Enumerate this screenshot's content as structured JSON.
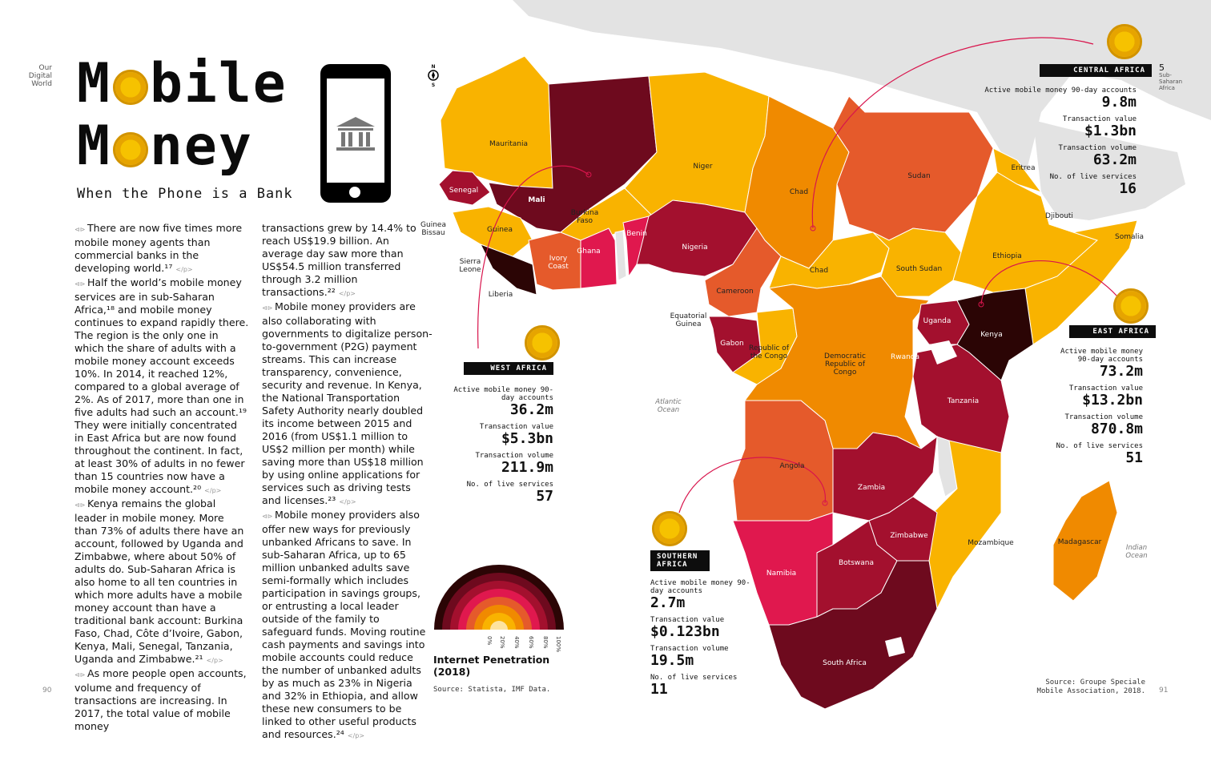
{
  "header": {
    "section": "Our Digital World",
    "page_section_no": "5",
    "page_section_name": "Sub-Saharan Africa"
  },
  "title": {
    "line1": "M bile",
    "line2": "M ney",
    "subtitle": "When the Phone is a Bank"
  },
  "compass": {
    "n": "N",
    "s": "S"
  },
  "body": {
    "col1": [
      "There are now five times more mobile money agents than commercial banks in the developing world.¹⁷",
      "Half the world’s mobile money services are in sub-Saharan Africa,¹⁸ and mobile money continues to expand rapidly there. The region is the only one in which the share of adults with a mobile money account exceeds 10%. In 2014, it reached 12%, compared to a global average of 2%. As of 2017, more than one in five adults had such an account.¹⁹ They were initially concentrated in East Africa but are now found throughout the continent. In fact, at least 30% of adults in no fewer than 15 countries now have a mobile money account.²⁰",
      "Kenya remains the global leader in mobile money. More than 73% of adults there have an account, followed by Uganda and Zimbabwe, where about 50% of adults do. Sub-Saharan Africa is also home to all ten countries in which more adults have a mobile money account than have a traditional bank account: Burkina Faso, Chad, Côte d’Ivoire, Gabon, Kenya, Mali, Senegal, Tanzania, Uganda and Zimbabwe.²¹",
      "As more people open accounts, volume and frequency of transactions are increasing. In 2017, the total value of mobile money"
    ],
    "col2": [
      "transactions grew by 14.4% to reach US$19.9 billion. An average day saw more than US$54.5 million transferred through 3.2 million transactions.²²",
      "Mobile money providers are also collaborating with governments to digitalize person-to-government (P2G) payment streams. This can increase transparency, convenience, security and revenue. In Kenya, the National Transportation Safety Authority nearly doubled its income between 2015 and 2016 (from US$1.1 million to US$2 million per month) while saving more than US$18 million by using online applications for services such as driving tests and licenses.²³",
      "Mobile money providers also offer new ways for previously unbanked Africans to save. In sub-Saharan Africa, up to 65 million unbanked adults save semi-formally which includes participation in savings groups, or entrusting a local leader outside of the family to safeguard funds. Moving routine cash payments and savings into mobile accounts could reduce the number of unbanked adults by as much as 23% in Nigeria and 32% in Ethiopia, and allow these new consumers to be linked to other useful products and resources.²⁴"
    ],
    "para_start": "⊲⊳",
    "para_end": "</p>"
  },
  "legend": {
    "title": "Internet Penetration (2018)",
    "ticks": [
      "0%",
      "20%",
      "40%",
      "60%",
      "80%",
      "100%"
    ],
    "colors": [
      "#fde3a0",
      "#f9b300",
      "#f08a00",
      "#e55a2b",
      "#e0184e",
      "#a3102e",
      "#6e0a1e",
      "#2b0505"
    ],
    "source": "Source: Statista, IMF Data."
  },
  "regions": {
    "labels": {
      "active": "Active mobile money 90-day accounts",
      "value": "Transaction value",
      "volume": "Transaction volume",
      "services": "No. of live services"
    },
    "west": {
      "name": "WEST AFRICA",
      "active": "36.2m",
      "value": "$5.3bn",
      "volume": "211.9m",
      "services": "57"
    },
    "central": {
      "name": "CENTRAL AFRICA",
      "active": "9.8m",
      "value": "$1.3bn",
      "volume": "63.2m",
      "services": "16"
    },
    "east": {
      "name": "EAST AFRICA",
      "active": "73.2m",
      "value": "$13.2bn",
      "volume": "870.8m",
      "services": "51"
    },
    "southern": {
      "name": "SOUTHERN AFRICA",
      "active": "2.7m",
      "value": "$0.123bn",
      "volume": "19.5m",
      "services": "11"
    }
  },
  "map_labels": {
    "mauritania": "Mauritania",
    "mali": "Mali",
    "niger": "Niger",
    "chad": "Chad",
    "chad2": "Chad",
    "sudan": "Sudan",
    "eritrea": "Eritrea",
    "djibouti": "Djibouti",
    "somalia": "Somalia",
    "ethiopia": "Ethiopia",
    "south_sudan": "South Sudan",
    "senegal": "Senegal",
    "guinea_bissau": "Guinea Bissau",
    "guinea": "Guinea",
    "burkina": "Burkina Faso",
    "benin": "Benin",
    "nigeria": "Nigeria",
    "sierra_leone": "Sierra Leone",
    "liberia": "Liberia",
    "ivory": "Ivory Coast",
    "ghana": "Ghana",
    "cameroon": "Cameroon",
    "eq_guinea": "Equatorial Guinea",
    "gabon": "Gabon",
    "congo": "Republic of the Congo",
    "drc": "Democratic Republic of Congo",
    "uganda": "Uganda",
    "kenya": "Kenya",
    "rwanda": "Rwanda",
    "tanzania": "Tanzania",
    "angola": "Angola",
    "zambia": "Zambia",
    "zimbabwe": "Zimbabwe",
    "mozambique": "Mozambique",
    "madagascar": "Madagascar",
    "namibia": "Namibia",
    "botswana": "Botswana",
    "south_africa": "South Africa",
    "atlantic": "Atlantic Ocean",
    "indian": "Indian Ocean"
  },
  "footer": {
    "page_left": "90",
    "page_right": "91",
    "source_right": "Source: Groupe Speciale Mobile Association, 2018."
  }
}
